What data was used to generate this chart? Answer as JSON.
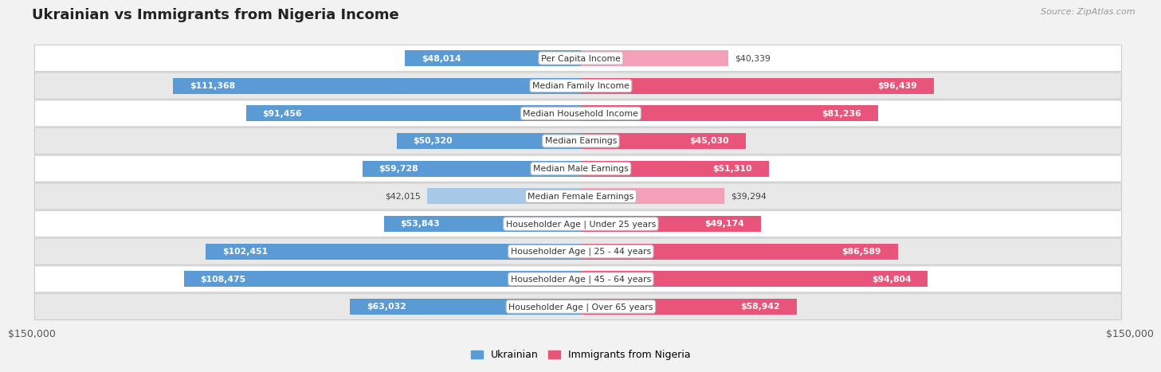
{
  "title": "Ukrainian vs Immigrants from Nigeria Income",
  "source": "Source: ZipAtlas.com",
  "categories": [
    "Per Capita Income",
    "Median Family Income",
    "Median Household Income",
    "Median Earnings",
    "Median Male Earnings",
    "Median Female Earnings",
    "Householder Age | Under 25 years",
    "Householder Age | 25 - 44 years",
    "Householder Age | 45 - 64 years",
    "Householder Age | Over 65 years"
  ],
  "ukrainian_values": [
    48014,
    111368,
    91456,
    50320,
    59728,
    42015,
    53843,
    102451,
    108475,
    63032
  ],
  "nigeria_values": [
    40339,
    96439,
    81236,
    45030,
    51310,
    39294,
    49174,
    86589,
    94804,
    58942
  ],
  "ukrainian_labels": [
    "$48,014",
    "$111,368",
    "$91,456",
    "$50,320",
    "$59,728",
    "$42,015",
    "$53,843",
    "$102,451",
    "$108,475",
    "$63,032"
  ],
  "nigeria_labels": [
    "$40,339",
    "$96,439",
    "$81,236",
    "$45,030",
    "$51,310",
    "$39,294",
    "$49,174",
    "$86,589",
    "$94,804",
    "$58,942"
  ],
  "ukrainian_color_light": "#a8c8e8",
  "ukrainian_color_dark": "#5b9bd5",
  "nigeria_color_light": "#f4a0b8",
  "nigeria_color_dark": "#e8547a",
  "max_value": 150000,
  "bar_height": 0.58,
  "bg_color": "#f2f2f2",
  "row_bg_light": "#ffffff",
  "row_bg_dark": "#e8e8e8",
  "legend_ukrainian": "Ukrainian",
  "legend_nigeria": "Immigrants from Nigeria",
  "xlabel_left": "$150,000",
  "xlabel_right": "$150,000",
  "inside_threshold": 45000
}
